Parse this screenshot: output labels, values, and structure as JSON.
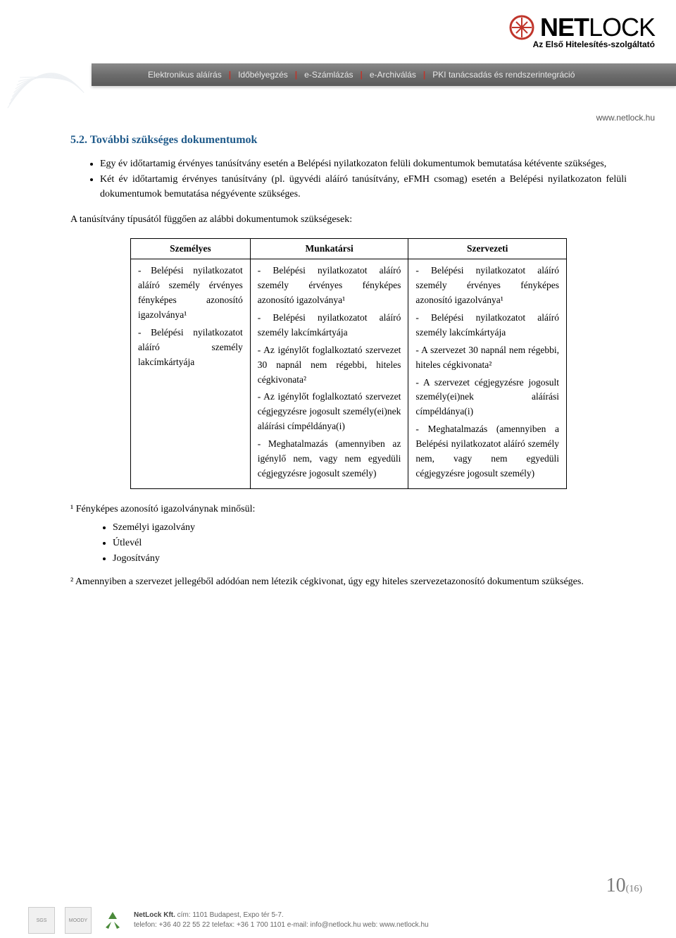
{
  "logo": {
    "brand_bold": "NET",
    "brand_light": "LOCK",
    "tagline": "Az Első Hitelesítés-szolgáltató",
    "icon_color": "#c0352b"
  },
  "navbar": {
    "items": [
      "Elektronikus aláírás",
      "Időbélyegzés",
      "e-Számlázás",
      "e-Archiválás",
      "PKI tanácsadás és rendszerintegráció"
    ],
    "sep_color": "#c0352b",
    "bg_gradient_top": "#8a8a8a",
    "bg_gradient_bottom": "#5a5a5a"
  },
  "website": "www.netlock.hu",
  "section": {
    "number": "5.2.",
    "title": "További szükséges dokumentumok",
    "heading_color": "#1f5a8a"
  },
  "bullets": [
    "Egy év időtartamig érvényes tanúsítvány esetén a Belépési nyilatkozaton felüli dokumentumok bemutatása kétévente szükséges,",
    "Két év időtartamig érvényes tanúsítvány (pl. ügyvédi aláíró tanúsítvány, eFMH csomag) esetén a Belépési nyilatkozaton felüli dokumentumok bemutatása négyévente szükséges."
  ],
  "intro_line": "A tanúsítvány típusától függően az alábbi dokumentumok szükségesek:",
  "table": {
    "headers": [
      "Személyes",
      "Munkatársi",
      "Szervezeti"
    ],
    "cells": [
      "- Belépési nyilatkozatot aláíró személy érvényes fényképes azonosító igazolványa¹\n- Belépési nyilatkozatot aláíró személy lakcímkártyája",
      "- Belépési nyilatkozatot aláíró személy érvényes fényképes azonosító igazolványa¹\n- Belépési nyilatkozatot aláíró személy lakcímkártyája\n- Az igénylőt foglalkoztató szervezet 30 napnál nem régebbi, hiteles cégkivonata²\n- Az igénylőt foglalkoztató szervezet cégjegyzésre jogosult személy(ei)nek aláírási címpéldánya(i)\n- Meghatalmazás (amennyiben az igénylő nem, vagy nem egyedüli cégjegyzésre jogosult személy)",
      "- Belépési nyilatkozatot aláíró személy érvényes fényképes azonosító igazolványa¹\n- Belépési nyilatkozatot aláíró személy lakcímkártyája\n- A szervezet 30 napnál nem régebbi, hiteles cégkivonata²\n- A szervezet cégjegyzésre jogosult személy(ei)nek aláírási címpéldánya(i)\n- Meghatalmazás (amennyiben a Belépési nyilatkozatot aláíró személy nem, vagy nem egyedüli cégjegyzésre jogosult személy)"
    ]
  },
  "footnote1": {
    "label": "¹ Fényképes azonosító igazolványnak minősül:",
    "items": [
      "Személyi igazolvány",
      "Útlevél",
      "Jogosítvány"
    ]
  },
  "footnote2": "² Amennyiben a szervezet jellegéből adódóan nem létezik cégkivonat, úgy egy hiteles szervezetazonosító dokumentum szükséges.",
  "page": {
    "current": "10",
    "total": "(16)",
    "color": "#7a7a7a"
  },
  "footer": {
    "company_bold": "NetLock Kft.",
    "line1": " cím: 1101 Budapest, Expo tér 5-7.",
    "line2": "telefon: +36 40 22 55 22  telefax: +36 1 700 1101  e-mail: info@netlock.hu  web: www.netlock.hu",
    "cert1": "SGS",
    "cert2": "MOODY"
  }
}
